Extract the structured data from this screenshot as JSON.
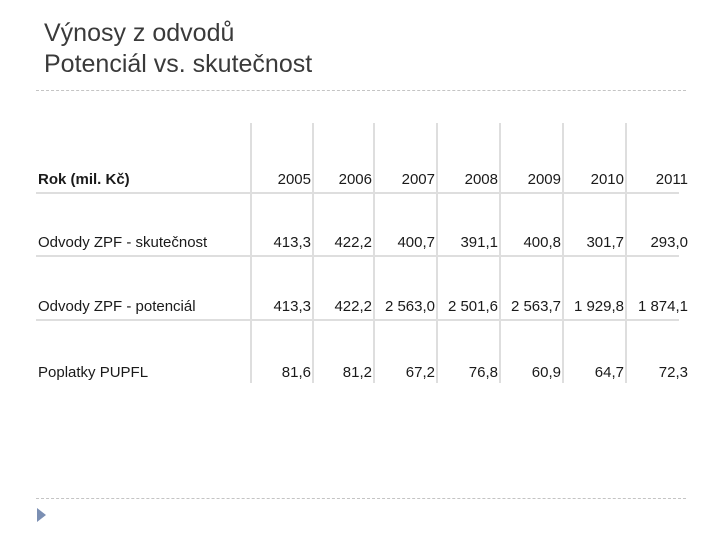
{
  "slide": {
    "title_line1": "Výnosy z odvodů",
    "title_line2": "Potenciál vs. skutečnost"
  },
  "table": {
    "header_label": "Rok (mil. Kč)",
    "years": [
      "2005",
      "2006",
      "2007",
      "2008",
      "2009",
      "2010",
      "2011"
    ],
    "rows": [
      {
        "label": "Odvody ZPF - skutečnost",
        "values": [
          "413,3",
          "422,2",
          "400,7",
          "391,1",
          "400,8",
          "301,7",
          "293,0"
        ]
      },
      {
        "label": "Odvody ZPF - potenciál",
        "values": [
          "413,3",
          "422,2",
          "2 563,0",
          "2 501,6",
          "2 563,7",
          "1 929,8",
          "1 874,1"
        ]
      },
      {
        "label": "Poplatky PUPFL",
        "values": [
          "81,6",
          "81,2",
          "67,2",
          "76,8",
          "60,9",
          "64,7",
          "72,3"
        ]
      }
    ]
  }
}
